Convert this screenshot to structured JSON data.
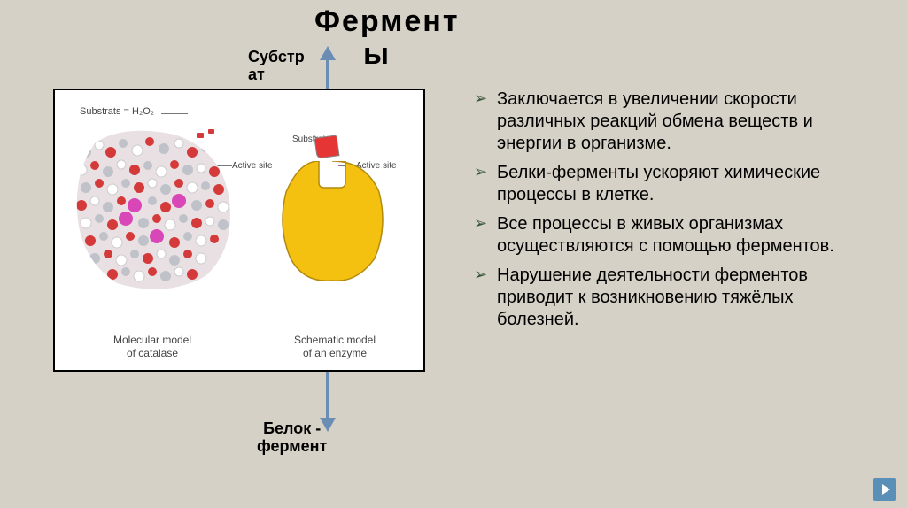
{
  "title_part1": "Фермент",
  "title_part2": "ы",
  "labels": {
    "substrate_top": "Субстр\nат",
    "protein_enzyme": "Белок -\nфермент"
  },
  "diagram": {
    "substrate_label": "Substrats = H₂O₂",
    "active_site_label": "Active site",
    "substrate2_label": "Substrate",
    "caption_left": "Molecular model\nof catalase",
    "caption_right": "Schematic model\nof an enzyme",
    "molecule_colors": {
      "background": "#ffffff",
      "sphere_gray": "#bfc3c9",
      "sphere_white": "#ffffff",
      "sphere_red": "#d43a3a",
      "sphere_magenta": "#d946b8"
    },
    "enzyme_color": "#f5c111",
    "enzyme_stroke": "#b38a0c",
    "substrate_color": "#e63535",
    "border_color": "#000000"
  },
  "arrow": {
    "color": "#6b8db3"
  },
  "bullets": [
    "Заключается в увеличении скорости различных реакций обмена веществ и энергии в организме.",
    "Белки-ферменты ускоряют химические процессы в клетке.",
    "Все процессы в живых организмах осуществляются с помощью ферментов.",
    "Нарушение деятельности ферментов приводит к возникновению тяжёлых болезней."
  ],
  "typography": {
    "title_fontsize": 34,
    "title_weight": 900,
    "bullet_fontsize": 20,
    "label_fontsize": 18,
    "diagram_label_fontsize": 11
  },
  "background_color": "#d6d1c7",
  "bullet_marker_color": "#3a5a3a",
  "nav_button_color": "#5a8fb8"
}
